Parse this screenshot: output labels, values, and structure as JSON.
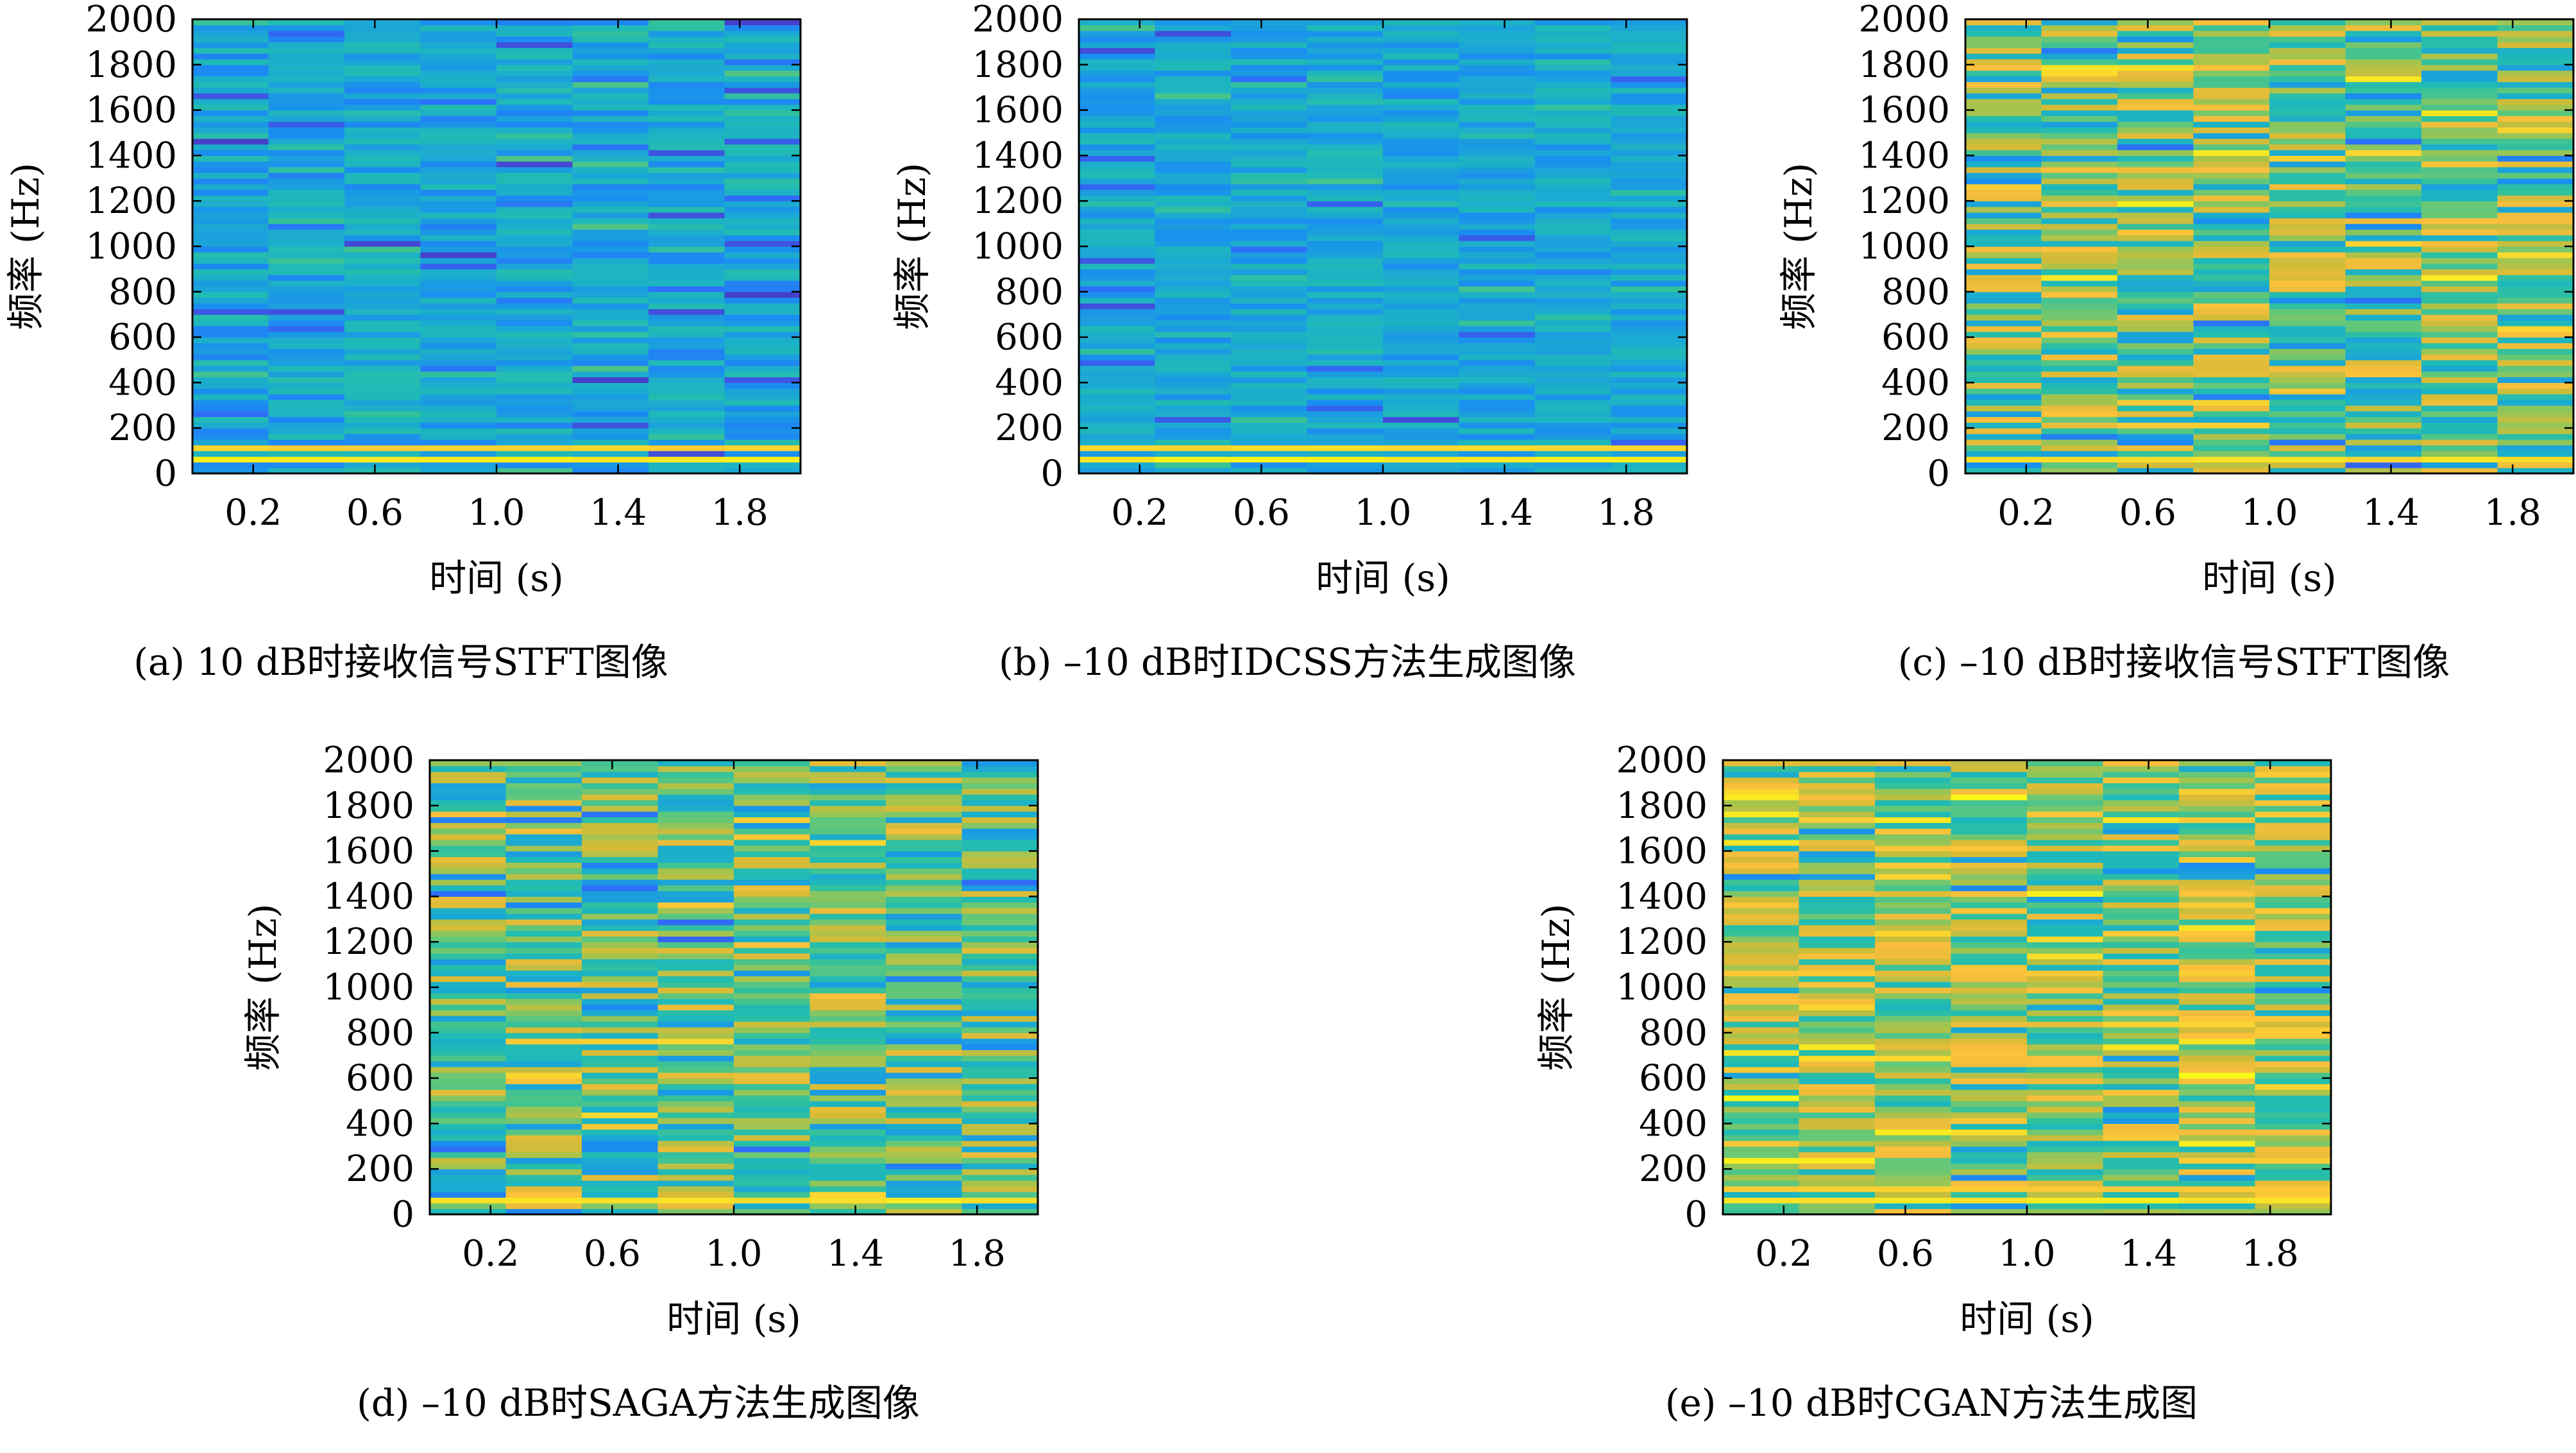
{
  "colors": {
    "colormap": [
      "#3e26a8",
      "#4743ce",
      "#2f6df9",
      "#1a8ef0",
      "#1ba9d3",
      "#1fbab7",
      "#33c19c",
      "#65c778",
      "#a3c44e",
      "#d7bb37",
      "#fbbf3c",
      "#fad82e",
      "#f9fb15"
    ]
  },
  "chart_data": [
    {
      "type": "heatmap",
      "caption": "(a) 10 dB时接收信号STFT图像",
      "xlabel": "时间 (s)",
      "ylabel": "频率 (Hz)",
      "xticks": [
        "0.2",
        "0.6",
        "1.0",
        "1.4",
        "1.8"
      ],
      "yticks": [
        "0",
        "200",
        "400",
        "600",
        "800",
        "1000",
        "1200",
        "1400",
        "1600",
        "1800",
        "2000"
      ],
      "xlim": [
        0,
        2
      ],
      "ylim": [
        0,
        2000
      ],
      "time_bins": 8,
      "freq_bins": 80,
      "level_range": [
        0.22,
        0.44
      ],
      "bright_bands": [
        {
          "freq": 60,
          "level": 0.98
        },
        {
          "freq": 110,
          "level": 0.92
        }
      ],
      "seed": 11
    },
    {
      "type": "heatmap",
      "caption": "(b) –10 dB时IDCSS方法生成图像",
      "xlabel": "时间 (s)",
      "ylabel": "频率 (Hz)",
      "xticks": [
        "0.2",
        "0.6",
        "1.0",
        "1.4",
        "1.8"
      ],
      "yticks": [
        "0",
        "200",
        "400",
        "600",
        "800",
        "1000",
        "1200",
        "1400",
        "1600",
        "1800",
        "2000"
      ],
      "xlim": [
        0,
        2
      ],
      "ylim": [
        0,
        2000
      ],
      "time_bins": 8,
      "freq_bins": 80,
      "level_range": [
        0.25,
        0.42
      ],
      "bright_bands": [
        {
          "freq": 60,
          "level": 0.98
        },
        {
          "freq": 110,
          "level": 0.93
        }
      ],
      "seed": 23
    },
    {
      "type": "heatmap",
      "caption": "(c) –10 dB时接收信号STFT图像",
      "xlabel": "时间 (s)",
      "ylabel": "频率 (Hz)",
      "xticks": [
        "0.2",
        "0.6",
        "1.0",
        "1.4",
        "1.8"
      ],
      "yticks": [
        "0",
        "200",
        "400",
        "600",
        "800",
        "1000",
        "1200",
        "1400",
        "1600",
        "1800",
        "2000"
      ],
      "xlim": [
        0,
        2
      ],
      "ylim": [
        0,
        2000
      ],
      "time_bins": 8,
      "freq_bins": 80,
      "level_range": [
        0.3,
        0.85
      ],
      "bright_bands": [
        {
          "freq": 70,
          "level": 0.95
        }
      ],
      "seed": 37
    },
    {
      "type": "heatmap",
      "caption": "(d) –10 dB时SAGA方法生成图像",
      "xlabel": "时间 (s)",
      "ylabel": "频率 (Hz)",
      "xticks": [
        "0.2",
        "0.6",
        "1.0",
        "1.4",
        "1.8"
      ],
      "yticks": [
        "0",
        "200",
        "400",
        "600",
        "800",
        "1000",
        "1200",
        "1400",
        "1600",
        "1800",
        "2000"
      ],
      "xlim": [
        0,
        2
      ],
      "ylim": [
        0,
        2000
      ],
      "time_bins": 8,
      "freq_bins": 80,
      "level_range": [
        0.28,
        0.8
      ],
      "bright_bands": [
        {
          "freq": 70,
          "level": 0.96
        }
      ],
      "seed": 53
    },
    {
      "type": "heatmap",
      "caption": "(e) –10 dB时CGAN方法生成图",
      "xlabel": "时间 (s)",
      "ylabel": "频率 (Hz)",
      "xticks": [
        "0.2",
        "0.6",
        "1.0",
        "1.4",
        "1.8"
      ],
      "yticks": [
        "0",
        "200",
        "400",
        "600",
        "800",
        "1000",
        "1200",
        "1400",
        "1600",
        "1800",
        "2000"
      ],
      "xlim": [
        0,
        2
      ],
      "ylim": [
        0,
        2000
      ],
      "time_bins": 8,
      "freq_bins": 80,
      "level_range": [
        0.38,
        0.88
      ],
      "bright_bands": [
        {
          "freq": 70,
          "level": 0.97
        },
        {
          "freq": 110,
          "level": 0.9
        }
      ],
      "seed": 71
    }
  ]
}
